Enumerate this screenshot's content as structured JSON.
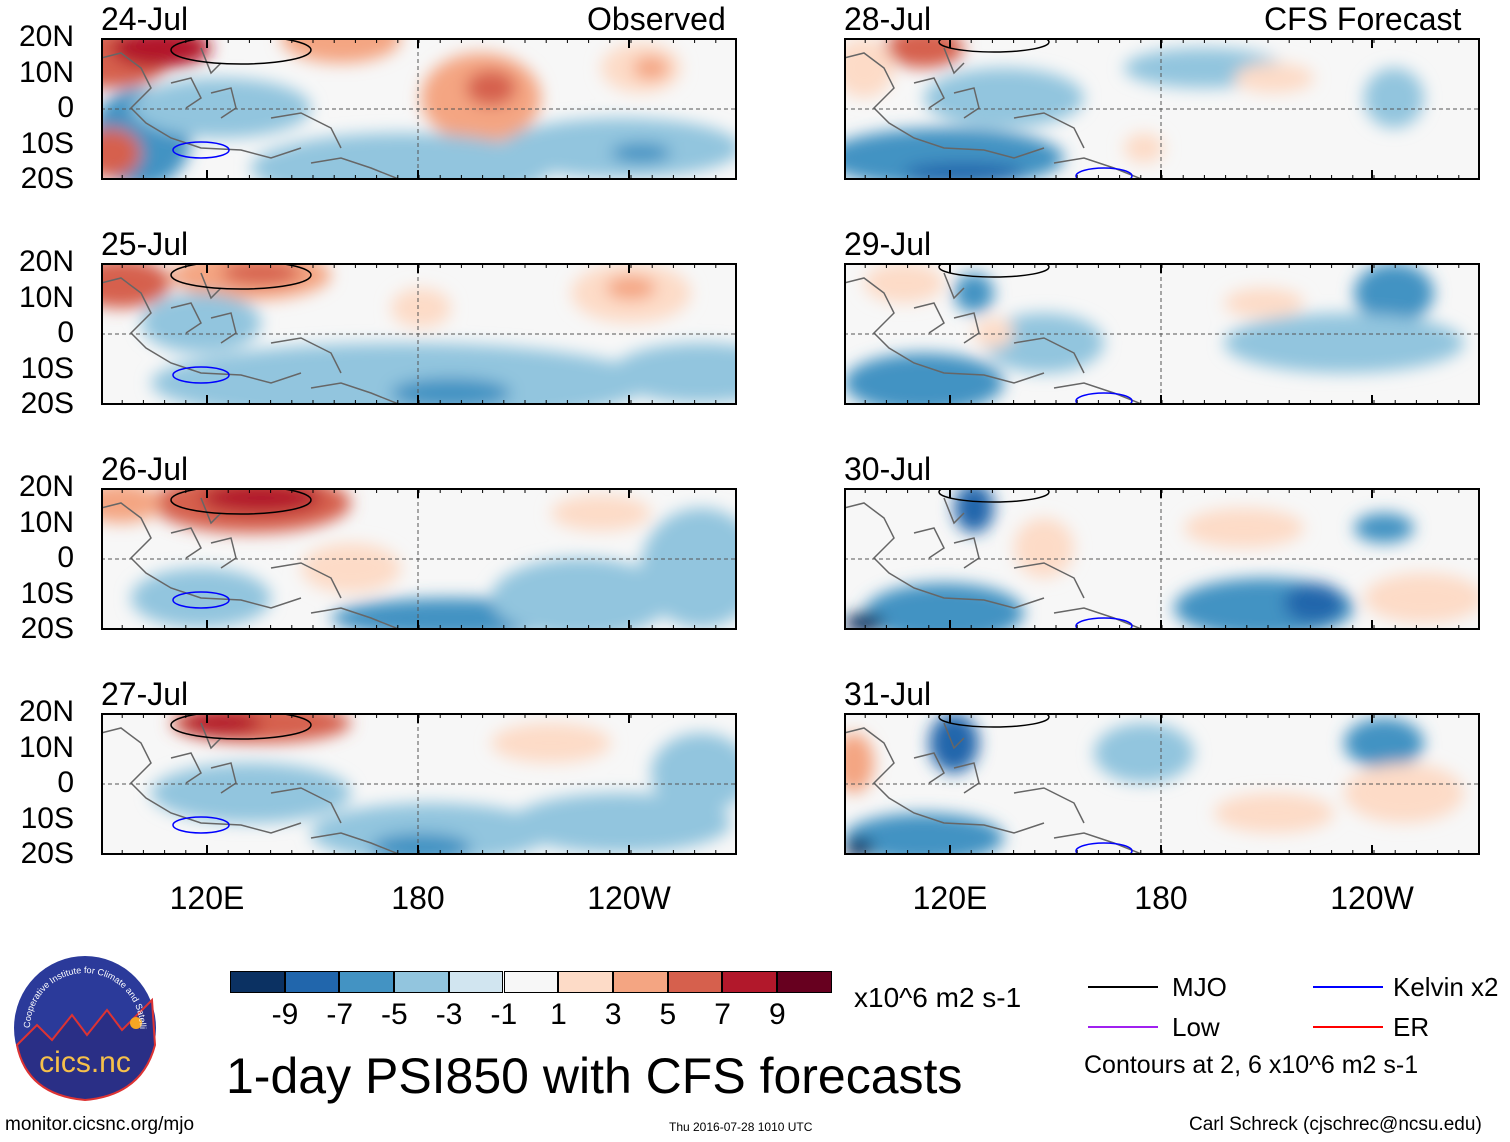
{
  "title": "1-day PSI850 with CFS forecasts",
  "observed_label": "Observed",
  "forecast_label": "CFS Forecast",
  "observed_dates": [
    "24-Jul",
    "25-Jul",
    "26-Jul",
    "27-Jul"
  ],
  "forecast_dates": [
    "28-Jul",
    "29-Jul",
    "30-Jul",
    "31-Jul"
  ],
  "lat_labels": [
    "20N",
    "10N",
    "0",
    "10S",
    "20S"
  ],
  "lon_labels": [
    "120E",
    "180",
    "120W"
  ],
  "colorbar": {
    "labels": [
      "-9",
      "-7",
      "-5",
      "-3",
      "-1",
      "1",
      "3",
      "5",
      "7",
      "9"
    ],
    "colors": [
      "#0b3162",
      "#2166ac",
      "#4393c3",
      "#92c5de",
      "#d1e5f0",
      "#f7f7f7",
      "#fddbc7",
      "#f4a582",
      "#d6604d",
      "#b2182b",
      "#67001f"
    ],
    "units": "x10^6 m2 s-1"
  },
  "legend": {
    "items": [
      {
        "label": "MJO",
        "color": "#000000"
      },
      {
        "label": "Kelvin x2",
        "color": "#0000ff"
      },
      {
        "label": "Low",
        "color": "#a020f0"
      },
      {
        "label": "ER",
        "color": "#ff0000"
      }
    ],
    "note": "Contours at 2, 6 x10^6 m2 s-1"
  },
  "logo_text": "cics.nc",
  "logo_ring_text": "Cooperative Institute for Climate and Satellites",
  "footer": {
    "url": "monitor.cicsnc.org/mjo",
    "timestamp": "Thu 2016-07-28 1010 UTC",
    "credit": "Carl Schreck (cjschrec@ncsu.edu)"
  }
}
